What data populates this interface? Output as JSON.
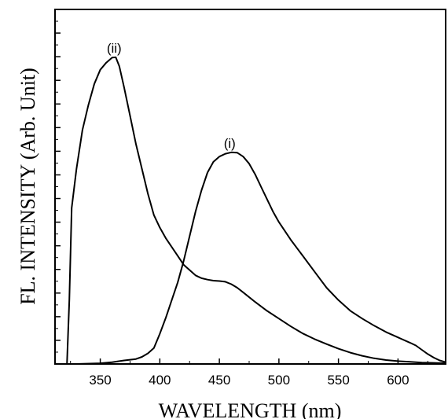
{
  "chart_data": {
    "type": "line",
    "title": "",
    "xlabel": "WAVELENGTH (nm)",
    "ylabel": "FL. INTENSITY (Arb. Unit)",
    "xlim": [
      312,
      640
    ],
    "ylim": [
      0,
      100
    ],
    "x_ticks": [
      350,
      400,
      450,
      500,
      550,
      600
    ],
    "y_ticks_labeled": false,
    "grid": false,
    "series": [
      {
        "name": "(ii)",
        "points": [
          [
            322,
            0
          ],
          [
            324,
            18
          ],
          [
            326,
            44
          ],
          [
            330,
            55
          ],
          [
            335,
            66
          ],
          [
            340,
            73
          ],
          [
            345,
            79
          ],
          [
            350,
            83
          ],
          [
            355,
            85
          ],
          [
            360,
            86.4
          ],
          [
            363,
            86.5
          ],
          [
            366,
            84
          ],
          [
            370,
            78
          ],
          [
            375,
            70
          ],
          [
            380,
            62
          ],
          [
            385,
            55
          ],
          [
            390,
            48
          ],
          [
            395,
            42
          ],
          [
            400,
            38.5
          ],
          [
            405,
            35.5
          ],
          [
            410,
            33
          ],
          [
            415,
            30.5
          ],
          [
            420,
            28
          ],
          [
            425,
            26.5
          ],
          [
            430,
            25
          ],
          [
            435,
            24.2
          ],
          [
            440,
            23.8
          ],
          [
            445,
            23.5
          ],
          [
            450,
            23.4
          ],
          [
            455,
            23.2
          ],
          [
            460,
            22.5
          ],
          [
            465,
            21.5
          ],
          [
            470,
            20.2
          ],
          [
            480,
            17.5
          ],
          [
            490,
            15
          ],
          [
            500,
            12.8
          ],
          [
            510,
            10.6
          ],
          [
            520,
            8.6
          ],
          [
            530,
            7
          ],
          [
            540,
            5.6
          ],
          [
            550,
            4.3
          ],
          [
            560,
            3.2
          ],
          [
            570,
            2.3
          ],
          [
            580,
            1.6
          ],
          [
            590,
            1.1
          ],
          [
            600,
            0.8
          ],
          [
            610,
            0.6
          ],
          [
            620,
            0.4
          ],
          [
            630,
            0.3
          ],
          [
            640,
            0.2
          ]
        ]
      },
      {
        "name": "(i)",
        "points": [
          [
            330,
            0
          ],
          [
            350,
            0.2
          ],
          [
            360,
            0.5
          ],
          [
            370,
            1
          ],
          [
            380,
            1.4
          ],
          [
            385,
            2
          ],
          [
            390,
            3
          ],
          [
            395,
            4.5
          ],
          [
            400,
            8.5
          ],
          [
            405,
            13
          ],
          [
            410,
            18
          ],
          [
            415,
            23
          ],
          [
            420,
            29
          ],
          [
            425,
            36
          ],
          [
            430,
            43
          ],
          [
            435,
            49
          ],
          [
            440,
            54
          ],
          [
            445,
            57
          ],
          [
            450,
            58.5
          ],
          [
            455,
            59.3
          ],
          [
            460,
            59.7
          ],
          [
            465,
            59.6
          ],
          [
            470,
            58.5
          ],
          [
            475,
            56.5
          ],
          [
            480,
            53.5
          ],
          [
            485,
            50
          ],
          [
            490,
            46.5
          ],
          [
            495,
            43
          ],
          [
            500,
            40
          ],
          [
            510,
            35
          ],
          [
            520,
            30.5
          ],
          [
            530,
            26
          ],
          [
            540,
            21.5
          ],
          [
            550,
            18
          ],
          [
            560,
            15
          ],
          [
            570,
            12.8
          ],
          [
            580,
            10.8
          ],
          [
            590,
            9
          ],
          [
            600,
            7.5
          ],
          [
            610,
            6
          ],
          [
            615,
            5.2
          ],
          [
            620,
            4
          ],
          [
            625,
            2.8
          ],
          [
            630,
            1.8
          ],
          [
            635,
            1
          ],
          [
            640,
            0.5
          ]
        ]
      }
    ]
  }
}
